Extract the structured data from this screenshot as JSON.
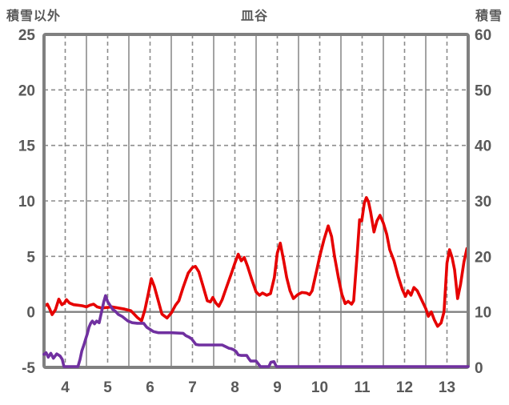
{
  "header": {
    "left_label": "積雪以外",
    "title": "皿谷",
    "right_label": "積雪"
  },
  "chart_data": {
    "type": "line",
    "title": "皿谷",
    "left_axis": {
      "label": "積雪以外",
      "max": 25,
      "min": -5,
      "ticks": [
        25,
        20,
        15,
        10,
        5,
        0,
        -5
      ]
    },
    "right_axis": {
      "label": "積雪",
      "max": 60,
      "min": 0,
      "ticks": [
        60,
        50,
        40,
        30,
        20,
        10,
        0
      ]
    },
    "x_axis": {
      "labels": [
        4,
        5,
        6,
        7,
        8,
        9,
        10,
        11,
        12,
        13
      ],
      "start": 4,
      "end": 14,
      "grid": "solid lines at day boundaries, dashed lines at labeled day centers"
    },
    "zero_line": 0,
    "colors": {
      "red_series": "#e60000",
      "snow_series": "#7030a0",
      "grid": "#8c8c8c",
      "border": "#808080",
      "text": "#595959",
      "background": "#ffffff"
    },
    "series": [
      {
        "name": "積雪以外",
        "axis": "left",
        "color": "#e60000",
        "points": [
          [
            4.0,
            0.5
          ],
          [
            4.08,
            0.7
          ],
          [
            4.13,
            0.3
          ],
          [
            4.19,
            -0.25
          ],
          [
            4.27,
            0.2
          ],
          [
            4.35,
            1.15
          ],
          [
            4.42,
            0.65
          ],
          [
            4.48,
            0.8
          ],
          [
            4.53,
            1.1
          ],
          [
            4.6,
            0.8
          ],
          [
            4.7,
            0.65
          ],
          [
            4.8,
            0.6
          ],
          [
            4.9,
            0.55
          ],
          [
            5.0,
            0.45
          ],
          [
            5.08,
            0.6
          ],
          [
            5.17,
            0.7
          ],
          [
            5.25,
            0.45
          ],
          [
            5.35,
            0.35
          ],
          [
            5.5,
            0.4
          ],
          [
            5.6,
            0.45
          ],
          [
            5.75,
            0.35
          ],
          [
            5.9,
            0.25
          ],
          [
            6.05,
            0.1
          ],
          [
            6.2,
            -0.5
          ],
          [
            6.3,
            -0.8
          ],
          [
            6.38,
            0.2
          ],
          [
            6.45,
            1.5
          ],
          [
            6.53,
            3.0
          ],
          [
            6.6,
            2.3
          ],
          [
            6.68,
            1.2
          ],
          [
            6.78,
            -0.2
          ],
          [
            6.9,
            -0.55
          ],
          [
            7.0,
            -0.1
          ],
          [
            7.1,
            0.6
          ],
          [
            7.18,
            1.0
          ],
          [
            7.28,
            2.2
          ],
          [
            7.4,
            3.5
          ],
          [
            7.5,
            4.0
          ],
          [
            7.57,
            4.1
          ],
          [
            7.65,
            3.6
          ],
          [
            7.75,
            2.3
          ],
          [
            7.85,
            1.0
          ],
          [
            7.92,
            0.9
          ],
          [
            7.98,
            1.3
          ],
          [
            8.05,
            0.8
          ],
          [
            8.12,
            0.5
          ],
          [
            8.2,
            1.1
          ],
          [
            8.3,
            2.2
          ],
          [
            8.42,
            3.5
          ],
          [
            8.5,
            4.4
          ],
          [
            8.58,
            5.2
          ],
          [
            8.65,
            4.6
          ],
          [
            8.72,
            4.9
          ],
          [
            8.8,
            4.1
          ],
          [
            8.9,
            2.9
          ],
          [
            9.0,
            1.8
          ],
          [
            9.08,
            1.5
          ],
          [
            9.15,
            1.7
          ],
          [
            9.25,
            1.5
          ],
          [
            9.34,
            1.65
          ],
          [
            9.43,
            3.1
          ],
          [
            9.5,
            5.3
          ],
          [
            9.57,
            6.2
          ],
          [
            9.65,
            4.6
          ],
          [
            9.72,
            3.1
          ],
          [
            9.8,
            1.9
          ],
          [
            9.88,
            1.2
          ],
          [
            9.98,
            1.55
          ],
          [
            10.08,
            1.75
          ],
          [
            10.19,
            1.7
          ],
          [
            10.26,
            1.55
          ],
          [
            10.32,
            1.9
          ],
          [
            10.42,
            3.6
          ],
          [
            10.5,
            5.0
          ],
          [
            10.6,
            6.5
          ],
          [
            10.7,
            7.75
          ],
          [
            10.78,
            6.8
          ],
          [
            10.85,
            5.0
          ],
          [
            10.94,
            3.1
          ],
          [
            11.02,
            1.6
          ],
          [
            11.1,
            0.75
          ],
          [
            11.17,
            0.95
          ],
          [
            11.25,
            0.7
          ],
          [
            11.3,
            1.0
          ],
          [
            11.38,
            5.0
          ],
          [
            11.44,
            8.3
          ],
          [
            11.49,
            8.2
          ],
          [
            11.55,
            9.8
          ],
          [
            11.6,
            10.3
          ],
          [
            11.65,
            9.9
          ],
          [
            11.7,
            9.0
          ],
          [
            11.78,
            7.2
          ],
          [
            11.85,
            8.2
          ],
          [
            11.92,
            8.7
          ],
          [
            12.0,
            8.0
          ],
          [
            12.08,
            7.0
          ],
          [
            12.15,
            5.6
          ],
          [
            12.25,
            4.6
          ],
          [
            12.35,
            3.2
          ],
          [
            12.45,
            2.0
          ],
          [
            12.52,
            1.4
          ],
          [
            12.58,
            1.9
          ],
          [
            12.65,
            1.5
          ],
          [
            12.72,
            2.2
          ],
          [
            12.8,
            1.9
          ],
          [
            12.9,
            1.1
          ],
          [
            13.0,
            0.3
          ],
          [
            13.06,
            -0.4
          ],
          [
            13.13,
            0.0
          ],
          [
            13.2,
            -0.7
          ],
          [
            13.28,
            -1.3
          ],
          [
            13.36,
            -1.0
          ],
          [
            13.43,
            0.0
          ],
          [
            13.5,
            4.4
          ],
          [
            13.56,
            5.6
          ],
          [
            13.62,
            4.9
          ],
          [
            13.68,
            3.8
          ],
          [
            13.75,
            1.2
          ],
          [
            13.82,
            2.5
          ],
          [
            13.9,
            4.5
          ],
          [
            13.97,
            5.7
          ]
        ]
      },
      {
        "name": "積雪",
        "axis": "right",
        "color": "#7030a0",
        "points": [
          [
            4.0,
            2.2
          ],
          [
            4.05,
            2.5
          ],
          [
            4.1,
            1.7
          ],
          [
            4.16,
            2.4
          ],
          [
            4.22,
            1.5
          ],
          [
            4.3,
            2.3
          ],
          [
            4.38,
            1.9
          ],
          [
            4.43,
            1.3
          ],
          [
            4.47,
            0
          ],
          [
            4.8,
            0
          ],
          [
            4.85,
            1.3
          ],
          [
            4.89,
            2.8
          ],
          [
            4.94,
            3.9
          ],
          [
            4.98,
            4.9
          ],
          [
            5.02,
            5.9
          ],
          [
            5.06,
            7.1
          ],
          [
            5.1,
            7.8
          ],
          [
            5.14,
            8.2
          ],
          [
            5.19,
            7.7
          ],
          [
            5.24,
            8.2
          ],
          [
            5.3,
            7.9
          ],
          [
            5.36,
            10.0
          ],
          [
            5.41,
            11.7
          ],
          [
            5.45,
            12.8
          ],
          [
            5.5,
            11.7
          ],
          [
            5.56,
            11.0
          ],
          [
            5.62,
            10.3
          ],
          [
            5.68,
            10.0
          ],
          [
            5.75,
            9.4
          ],
          [
            5.85,
            9.0
          ],
          [
            5.98,
            8.2
          ],
          [
            6.08,
            7.9
          ],
          [
            6.2,
            7.8
          ],
          [
            6.35,
            7.8
          ],
          [
            6.42,
            7.1
          ],
          [
            6.5,
            6.7
          ],
          [
            6.58,
            6.3
          ],
          [
            6.7,
            6.1
          ],
          [
            7.0,
            6.1
          ],
          [
            7.28,
            6.0
          ],
          [
            7.34,
            5.6
          ],
          [
            7.42,
            5.3
          ],
          [
            7.48,
            5.0
          ],
          [
            7.53,
            4.5
          ],
          [
            7.58,
            4.0
          ],
          [
            7.65,
            3.9
          ],
          [
            8.0,
            3.9
          ],
          [
            8.2,
            3.9
          ],
          [
            8.28,
            3.6
          ],
          [
            8.36,
            3.3
          ],
          [
            8.42,
            3.2
          ],
          [
            8.48,
            3.0
          ],
          [
            8.53,
            2.7
          ],
          [
            8.58,
            2.1
          ],
          [
            8.65,
            2.0
          ],
          [
            8.78,
            2.0
          ],
          [
            8.82,
            1.5
          ],
          [
            8.87,
            1.0
          ],
          [
            9.0,
            1.0
          ],
          [
            9.05,
            0.5
          ],
          [
            9.1,
            0
          ],
          [
            9.3,
            0
          ],
          [
            9.35,
            0.8
          ],
          [
            9.42,
            0.9
          ],
          [
            9.48,
            0
          ],
          [
            14.0,
            0
          ]
        ]
      }
    ]
  }
}
